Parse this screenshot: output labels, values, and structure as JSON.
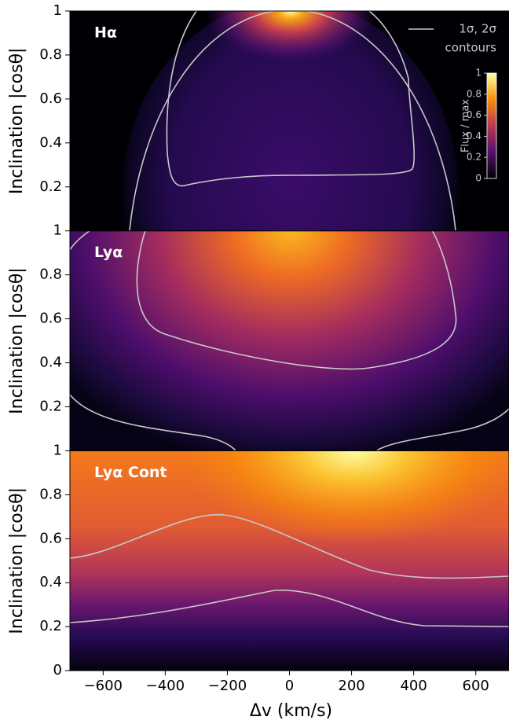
{
  "chart_data": [
    {
      "type": "heatmap",
      "label": "Hα",
      "ylabel": "Inclination  |cosθ|",
      "ylim": [
        0,
        1
      ],
      "yticks": [
        0.2,
        0.4,
        0.6,
        0.8,
        1
      ],
      "legend": [
        "1σ, 2σ",
        "contours"
      ],
      "colorbar": {
        "label": "Flux / max",
        "lim": [
          0,
          1
        ],
        "ticks": [
          0,
          0.2,
          0.4,
          0.6,
          0.8,
          1
        ]
      }
    },
    {
      "type": "heatmap",
      "label": "Lyα",
      "ylabel": "Inclination  |cosθ|",
      "ylim": [
        0,
        1
      ],
      "yticks": [
        0.2,
        0.4,
        0.6,
        0.8,
        1
      ]
    },
    {
      "type": "heatmap",
      "label": "Lyα  Cont",
      "ylabel": "Inclination  |cosθ|",
      "ylim": [
        0,
        1
      ],
      "yticks": [
        0,
        0.2,
        0.4,
        0.6,
        0.8,
        1
      ],
      "xlabel": "Δv  (km/s)",
      "xlim": [
        -707,
        707
      ],
      "xticks": [
        {
          "value": -600,
          "label": "−600"
        },
        {
          "value": -400,
          "label": "−400"
        },
        {
          "value": -200,
          "label": "−200"
        },
        0,
        200,
        400,
        600
      ]
    }
  ]
}
